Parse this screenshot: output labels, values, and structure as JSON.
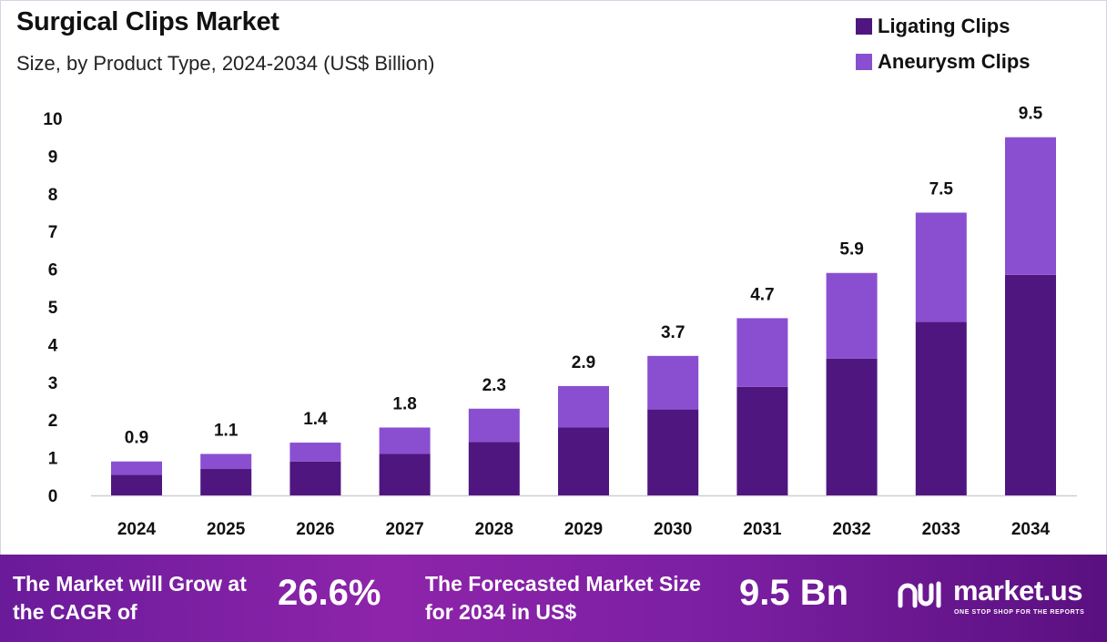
{
  "header": {
    "title": "Surgical Clips Market",
    "subtitle": "Size, by Product Type, 2024-2034 (US$ Billion)"
  },
  "colors": {
    "ligating": "#4f1680",
    "aneurysm": "#8a4fd0",
    "axis_line": "#cfcfcf",
    "text": "#111111"
  },
  "chart_data": {
    "type": "bar",
    "stacked": true,
    "title": "Surgical Clips Market",
    "subtitle": "Size, by Product Type, 2024-2034 (US$ Billion)",
    "xlabel": "",
    "ylabel": "",
    "ylim": [
      0,
      10
    ],
    "yticks": [
      0,
      1,
      2,
      3,
      4,
      5,
      6,
      7,
      8,
      9,
      10
    ],
    "grid": false,
    "legend_position": "top-right",
    "categories": [
      "2024",
      "2025",
      "2026",
      "2027",
      "2028",
      "2029",
      "2030",
      "2031",
      "2032",
      "2033",
      "2034"
    ],
    "series": [
      {
        "name": "Ligating Clips",
        "values": [
          0.55,
          0.7,
          0.9,
          1.1,
          1.42,
          1.8,
          2.28,
          2.88,
          3.63,
          4.6,
          5.85
        ]
      },
      {
        "name": "Aneurysm Clips",
        "values": [
          0.35,
          0.4,
          0.5,
          0.7,
          0.88,
          1.1,
          1.42,
          1.82,
          2.27,
          2.9,
          3.65
        ]
      }
    ],
    "totals": [
      0.9,
      1.1,
      1.4,
      1.8,
      2.3,
      2.9,
      3.7,
      4.7,
      5.9,
      7.5,
      9.5
    ],
    "total_labels": [
      "0.9",
      "1.1",
      "1.4",
      "1.8",
      "2.3",
      "2.9",
      "3.7",
      "4.7",
      "5.9",
      "7.5",
      "9.5"
    ]
  },
  "footer": {
    "cagr_text": "The Market will Grow at the CAGR of",
    "cagr_value": "26.6%",
    "forecast_text": "The Forecasted Market Size for 2034 in US$",
    "forecast_value": "9.5 Bn",
    "brand_name": "market.us",
    "brand_tagline": "ONE STOP SHOP FOR THE REPORTS"
  }
}
